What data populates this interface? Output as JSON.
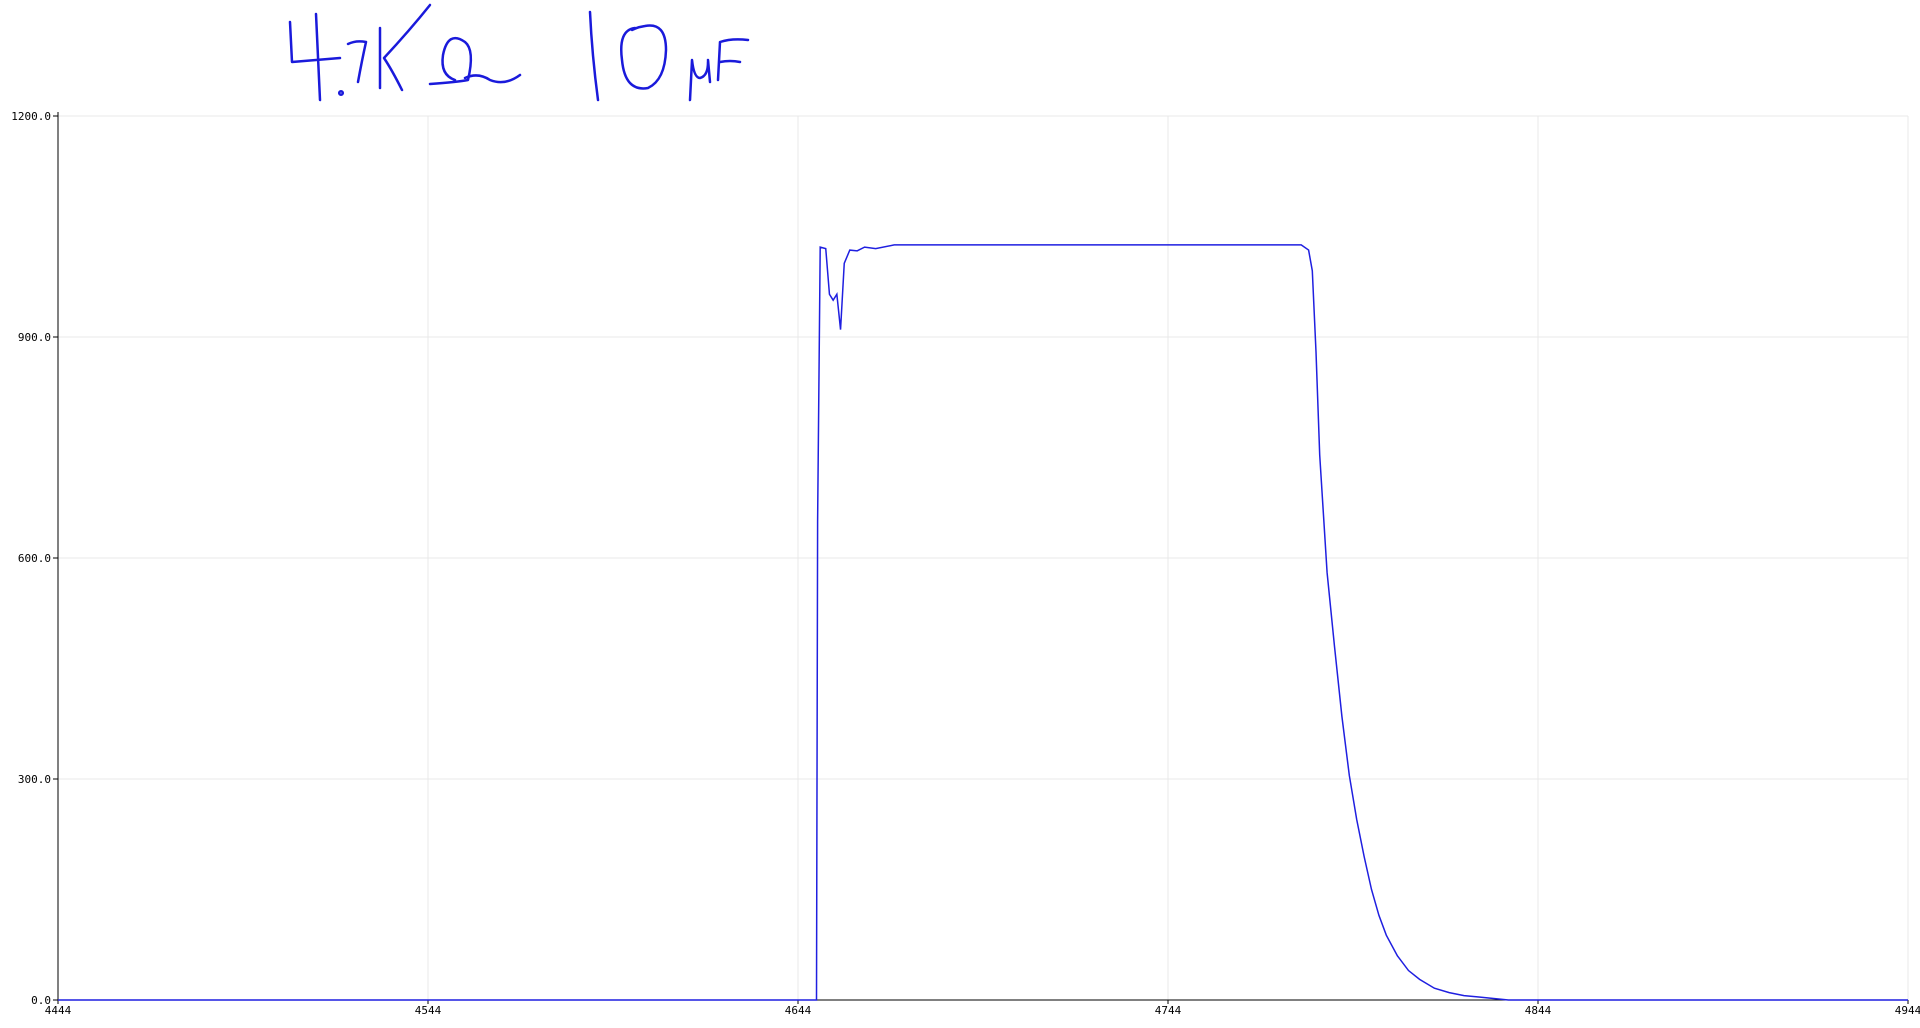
{
  "annotation": {
    "text": "4.7KΩ 10μF",
    "ink_color": "#1a1adb"
  },
  "chart_data": {
    "type": "line",
    "xlim": [
      4444,
      4944
    ],
    "ylim": [
      0,
      1200
    ],
    "x_ticks": [
      "4444",
      "4544",
      "4644",
      "4744",
      "4844",
      "4944"
    ],
    "y_ticks": [
      "0.0",
      "300.0",
      "600.0",
      "900.0",
      "1200.0"
    ],
    "grid": true,
    "series": [
      {
        "color": "#1f1fe0",
        "x": [
          4444,
          4649,
          4649.3,
          4650,
          4651.5,
          4652.5,
          4653.5,
          4654.5,
          4655.5,
          4656.5,
          4658,
          4660,
          4662,
          4665,
          4670,
          4680,
          4700,
          4740,
          4780,
          4782,
          4783,
          4784,
          4785,
          4787,
          4789,
          4791,
          4793,
          4795,
          4797,
          4799,
          4801,
          4803,
          4806,
          4809,
          4812,
          4816,
          4820,
          4824,
          4828,
          4832,
          4836,
          4938,
          4944
        ],
        "y": [
          0,
          0,
          650,
          1022,
          1020,
          958,
          950,
          958,
          910,
          1000,
          1018,
          1017,
          1022,
          1020,
          1025,
          1025,
          1025,
          1025,
          1025,
          1018,
          990,
          880,
          740,
          580,
          480,
          385,
          305,
          245,
          195,
          150,
          115,
          88,
          60,
          40,
          28,
          16,
          10,
          6,
          4,
          2,
          0,
          0,
          0
        ]
      }
    ]
  }
}
